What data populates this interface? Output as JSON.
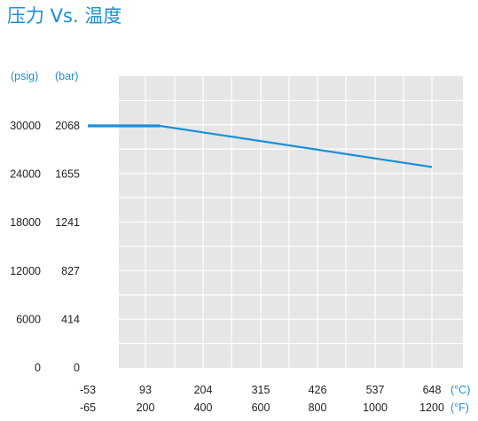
{
  "title": "压力 Vs. 温度",
  "colors": {
    "accent": "#1a8fd8",
    "plot_bg": "#e6e6e6",
    "grid": "#ffffff",
    "text": "#222222"
  },
  "chart_data": {
    "type": "line",
    "title": "压力 Vs. 温度",
    "y_units": [
      "(psig)",
      "(bar)"
    ],
    "x_units": [
      "(°C)",
      "(°F)"
    ],
    "y_ticks_psig": [
      "30000",
      "24000",
      "18000",
      "12000",
      "6000",
      "0"
    ],
    "y_ticks_bar": [
      "2068",
      "1655",
      "1241",
      "827",
      "414",
      "0"
    ],
    "x_ticks_c": [
      "-53",
      "93",
      "204",
      "315",
      "426",
      "537",
      "648"
    ],
    "x_ticks_f": [
      "-65",
      "200",
      "400",
      "600",
      "800",
      "1000",
      "1200"
    ],
    "xlim_f": [
      -65,
      1200
    ],
    "ylim_psig": [
      0,
      30000
    ],
    "grid": true,
    "series": [
      {
        "x_f": [
          -65,
          200,
          1200
        ],
        "y_psig": [
          30000,
          30000,
          24900
        ]
      }
    ]
  }
}
